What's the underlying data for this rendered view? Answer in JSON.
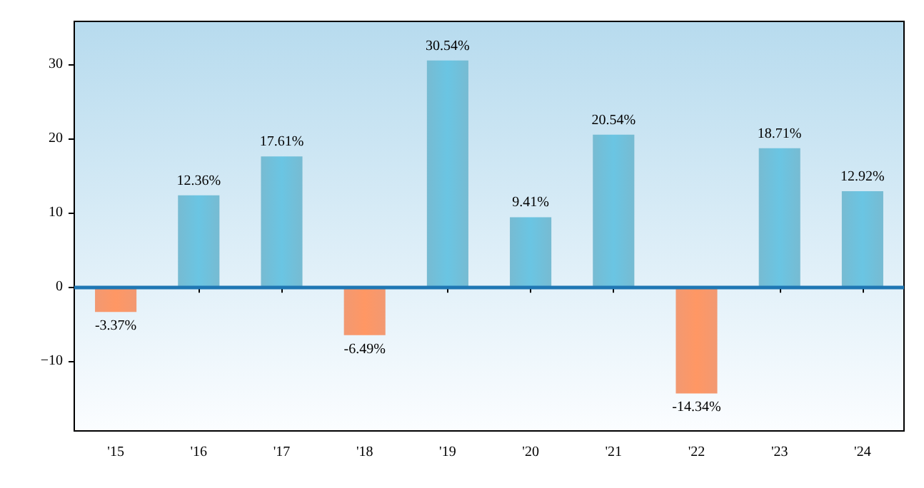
{
  "chart_data": {
    "type": "bar",
    "categories": [
      "'15",
      "'16",
      "'17",
      "'18",
      "'19",
      "'20",
      "'21",
      "'22",
      "'23",
      "'24"
    ],
    "values": [
      -3.37,
      12.36,
      17.61,
      -6.49,
      30.54,
      9.41,
      20.54,
      -14.34,
      18.71,
      12.92
    ],
    "colors": [
      "#f0875a",
      "#5fb0cb",
      "#5fb0cb",
      "#f0875a",
      "#5fb0cb",
      "#5fb0cb",
      "#5fb0cb",
      "#f0875a",
      "#5fb0cb",
      "#5fb0cb"
    ],
    "value_labels": [
      "-3.37%",
      "12.36%",
      "17.61%",
      "-6.49%",
      "30.54%",
      "9.41%",
      "20.54%",
      "-14.34%",
      "18.71%",
      "12.92%"
    ],
    "ylim": [
      -19.4,
      35.8
    ],
    "yticks": [
      -10,
      0,
      10,
      20,
      30
    ],
    "ref_lines": [
      {
        "axis": "y",
        "value": 0,
        "color": "#1f77b4"
      }
    ]
  }
}
